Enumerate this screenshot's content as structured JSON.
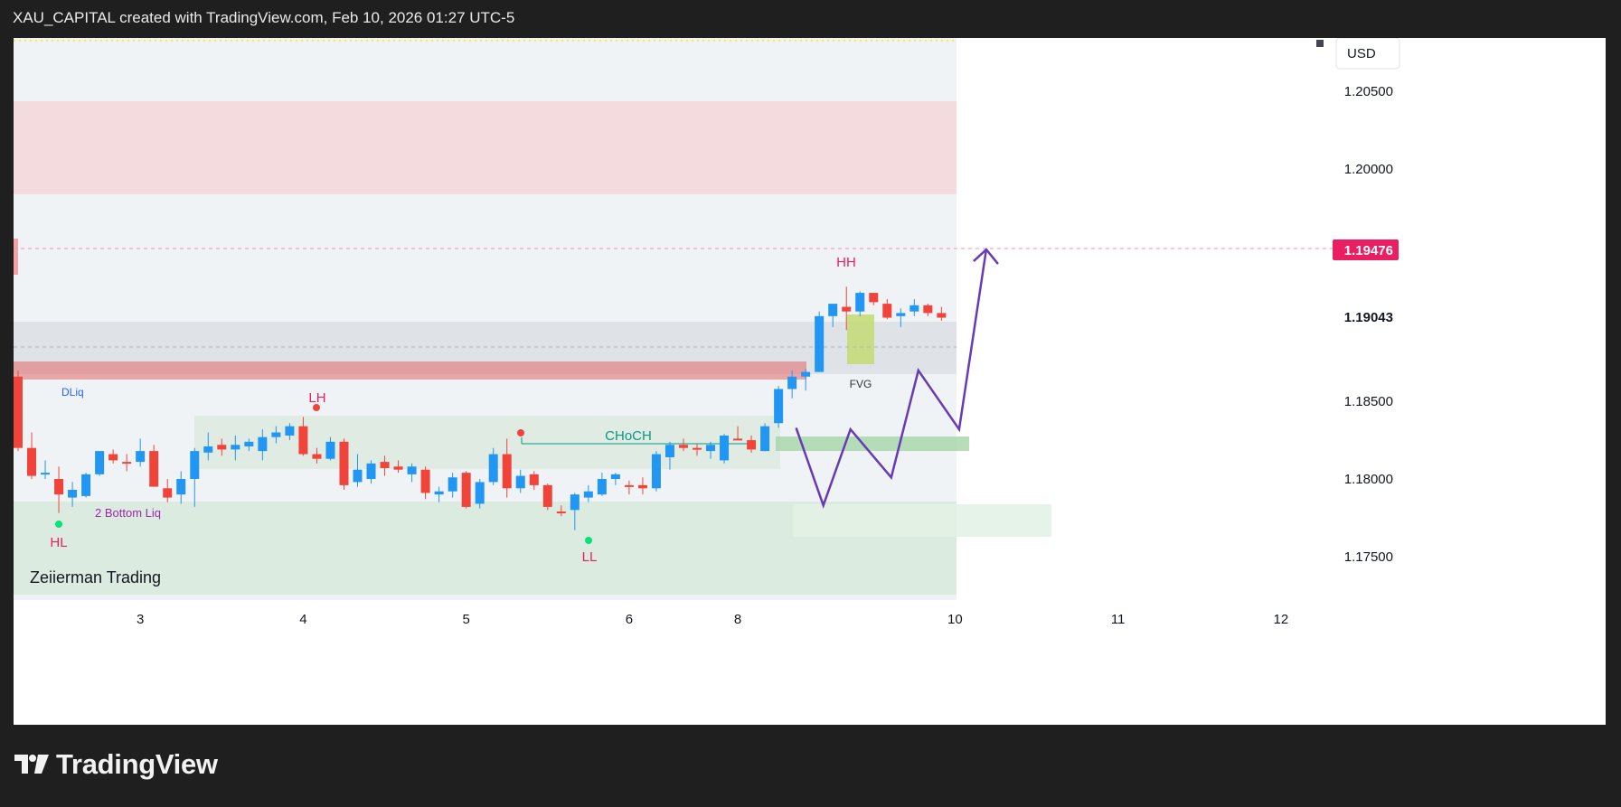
{
  "header": {
    "title": "XAU_CAPITAL created with TradingView.com, Feb 10, 2026 01:27 UTC-5"
  },
  "footer": {
    "logo_text": "TradingView"
  },
  "chart": {
    "currency": "USD",
    "watermark": "Zeiierman Trading",
    "current_price_label": "1.19043",
    "target_price_label": "1.19476",
    "annotations": {
      "hl": "HL",
      "lh": "LH",
      "ll": "LL",
      "hh": "HH",
      "dliq": "DLiq",
      "bottom_liq": "2 Bottom Liq",
      "choch": "CHoCH",
      "fvg": "FVG"
    },
    "colors": {
      "bull": "#2196f3",
      "bear": "#f0443a",
      "target": "#e91e63",
      "path": "#673ab7",
      "choch": "#089981"
    }
  },
  "chart_data": {
    "type": "candlestick",
    "y_range": [
      1.1716,
      1.2085
    ],
    "y_ticks": [
      1.205,
      1.2,
      1.185,
      1.18,
      1.175
    ],
    "y_tick_labels": [
      "1.20500",
      "1.20000",
      "1.18500",
      "1.18000",
      "1.17500"
    ],
    "x_ticks": [
      {
        "label": "3",
        "idx": 9
      },
      {
        "label": "4",
        "idx": 21
      },
      {
        "label": "5",
        "idx": 33
      },
      {
        "label": "6",
        "idx": 45
      },
      {
        "label": "8",
        "idx": 53
      },
      {
        "label": "10",
        "idx": 69
      },
      {
        "label": "11",
        "idx": 81
      },
      {
        "label": "12",
        "idx": 93
      }
    ],
    "candles": [
      [
        1.1866,
        1.187,
        1.1818,
        1.182
      ],
      [
        1.182,
        1.183,
        1.18,
        1.1802
      ],
      [
        1.1803,
        1.1812,
        1.18,
        1.1804
      ],
      [
        1.18,
        1.1808,
        1.1778,
        1.179
      ],
      [
        1.1788,
        1.1798,
        1.1782,
        1.1793
      ],
      [
        1.1789,
        1.1804,
        1.1788,
        1.1803
      ],
      [
        1.1803,
        1.1816,
        1.1802,
        1.1818
      ],
      [
        1.1816,
        1.1819,
        1.181,
        1.1812
      ],
      [
        1.1811,
        1.1816,
        1.1805,
        1.181
      ],
      [
        1.1811,
        1.1826,
        1.1808,
        1.1818
      ],
      [
        1.1818,
        1.1822,
        1.1798,
        1.1795
      ],
      [
        1.1794,
        1.18,
        1.1785,
        1.1788
      ],
      [
        1.179,
        1.1805,
        1.1784,
        1.18
      ],
      [
        1.18,
        1.182,
        1.1782,
        1.1818
      ],
      [
        1.1817,
        1.183,
        1.1812,
        1.1821
      ],
      [
        1.1822,
        1.1826,
        1.1815,
        1.1819
      ],
      [
        1.1819,
        1.1828,
        1.1812,
        1.1822
      ],
      [
        1.1821,
        1.1826,
        1.1818,
        1.1824
      ],
      [
        1.1818,
        1.1832,
        1.1812,
        1.1827
      ],
      [
        1.1827,
        1.1834,
        1.1823,
        1.183
      ],
      [
        1.1828,
        1.1836,
        1.1825,
        1.1834
      ],
      [
        1.1834,
        1.184,
        1.1815,
        1.1816
      ],
      [
        1.1816,
        1.182,
        1.181,
        1.1813
      ],
      [
        1.1813,
        1.1827,
        1.1812,
        1.1824
      ],
      [
        1.1824,
        1.1826,
        1.1793,
        1.1796
      ],
      [
        1.1798,
        1.1816,
        1.1795,
        1.1806
      ],
      [
        1.18,
        1.1812,
        1.1797,
        1.181
      ],
      [
        1.1811,
        1.1815,
        1.1802,
        1.1807
      ],
      [
        1.1808,
        1.1812,
        1.1804,
        1.1806
      ],
      [
        1.1803,
        1.181,
        1.1798,
        1.1808
      ],
      [
        1.1806,
        1.1808,
        1.1787,
        1.1791
      ],
      [
        1.179,
        1.1795,
        1.1785,
        1.1792
      ],
      [
        1.1792,
        1.1804,
        1.1788,
        1.1801
      ],
      [
        1.1804,
        1.1805,
        1.1781,
        1.1782
      ],
      [
        1.1784,
        1.18,
        1.1781,
        1.1798
      ],
      [
        1.1798,
        1.182,
        1.1796,
        1.1816
      ],
      [
        1.1816,
        1.1826,
        1.1788,
        1.1794
      ],
      [
        1.1794,
        1.1806,
        1.1791,
        1.1802
      ],
      [
        1.1803,
        1.1805,
        1.1793,
        1.1796
      ],
      [
        1.1796,
        1.1797,
        1.178,
        1.1782
      ],
      [
        1.1779,
        1.1783,
        1.1776,
        1.1778
      ],
      [
        1.178,
        1.1791,
        1.1767,
        1.179
      ],
      [
        1.1788,
        1.1796,
        1.1785,
        1.1792
      ],
      [
        1.179,
        1.1804,
        1.1789,
        1.18
      ],
      [
        1.18,
        1.1804,
        1.1796,
        1.1803
      ],
      [
        1.1796,
        1.1799,
        1.179,
        1.1795
      ],
      [
        1.1796,
        1.1801,
        1.179,
        1.1794
      ],
      [
        1.1794,
        1.1818,
        1.1792,
        1.1816
      ],
      [
        1.1814,
        1.1824,
        1.1806,
        1.1822
      ],
      [
        1.1822,
        1.1826,
        1.1818,
        1.182
      ],
      [
        1.182,
        1.1823,
        1.1815,
        1.1819
      ],
      [
        1.1818,
        1.1824,
        1.1813,
        1.1822
      ],
      [
        1.1812,
        1.1829,
        1.181,
        1.1828
      ],
      [
        1.1826,
        1.1834,
        1.1825,
        1.1825
      ],
      [
        1.1825,
        1.1828,
        1.1817,
        1.1819
      ],
      [
        1.1818,
        1.1836,
        1.1818,
        1.1834
      ],
      [
        1.1836,
        1.186,
        1.1833,
        1.1858
      ],
      [
        1.1858,
        1.187,
        1.1852,
        1.1866
      ],
      [
        1.1866,
        1.1871,
        1.1857,
        1.1869
      ],
      [
        1.1869,
        1.1908,
        1.1869,
        1.1905
      ],
      [
        1.1905,
        1.1912,
        1.1898,
        1.1913
      ],
      [
        1.1911,
        1.1924,
        1.1896,
        1.1908
      ],
      [
        1.1908,
        1.1921,
        1.1905,
        1.192
      ],
      [
        1.192,
        1.1919,
        1.1912,
        1.1914
      ],
      [
        1.1913,
        1.1916,
        1.1903,
        1.1904
      ],
      [
        1.1905,
        1.191,
        1.1898,
        1.1907
      ],
      [
        1.1908,
        1.1916,
        1.1905,
        1.1912
      ],
      [
        1.1912,
        1.1913,
        1.1905,
        1.1907
      ],
      [
        1.1907,
        1.1911,
        1.1902,
        1.1904
      ]
    ],
    "projection_path": [
      [
        57.3,
        1.1833
      ],
      [
        59.3,
        1.1783
      ],
      [
        61.3,
        1.1832
      ],
      [
        64.3,
        1.1801
      ],
      [
        66.3,
        1.187
      ],
      [
        69.3,
        1.1832
      ],
      [
        71.3,
        1.1948
      ]
    ]
  }
}
